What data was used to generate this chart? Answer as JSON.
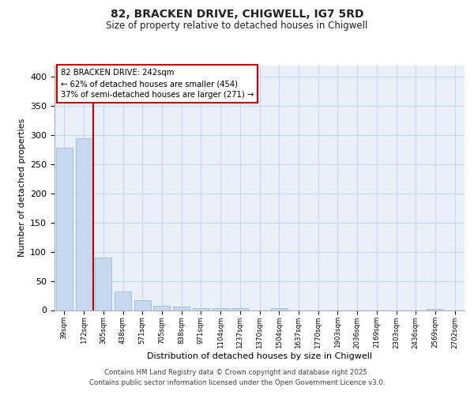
{
  "title1": "82, BRACKEN DRIVE, CHIGWELL, IG7 5RD",
  "title2": "Size of property relative to detached houses in Chigwell",
  "xlabel": "Distribution of detached houses by size in Chigwell",
  "ylabel": "Number of detached properties",
  "categories": [
    "39sqm",
    "172sqm",
    "305sqm",
    "438sqm",
    "571sqm",
    "705sqm",
    "838sqm",
    "971sqm",
    "1104sqm",
    "1237sqm",
    "1370sqm",
    "1504sqm",
    "1637sqm",
    "1770sqm",
    "1903sqm",
    "2036sqm",
    "2169sqm",
    "2303sqm",
    "2436sqm",
    "2569sqm",
    "2702sqm"
  ],
  "values": [
    279,
    295,
    90,
    32,
    17,
    8,
    6,
    4,
    3,
    3,
    0,
    3,
    0,
    0,
    0,
    0,
    0,
    0,
    0,
    2,
    0
  ],
  "bar_color": "#c5d8f0",
  "bar_edge_color": "#a0bcd8",
  "vline_x": 1.5,
  "vline_color": "#cc0000",
  "annotation_text": "82 BRACKEN DRIVE: 242sqm\n← 62% of detached houses are smaller (454)\n37% of semi-detached houses are larger (271) →",
  "annotation_box_facecolor": "white",
  "annotation_box_edgecolor": "#cc0000",
  "ylim": [
    0,
    420
  ],
  "yticks": [
    0,
    50,
    100,
    150,
    200,
    250,
    300,
    350,
    400
  ],
  "grid_color": "#c8d8ec",
  "bg_color": "#ffffff",
  "plot_bg_color": "#eaf0f8",
  "footer1": "Contains HM Land Registry data © Crown copyright and database right 2025.",
  "footer2": "Contains public sector information licensed under the Open Government Licence v3.0."
}
